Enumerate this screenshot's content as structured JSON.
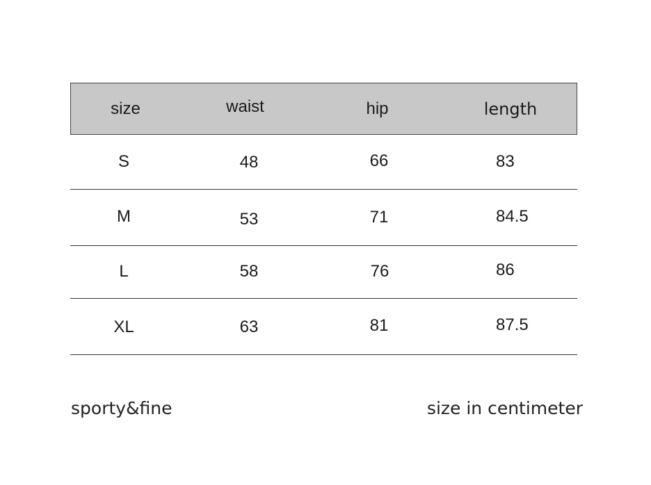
{
  "table": {
    "headers": [
      "size",
      "waist",
      "hip",
      "length"
    ],
    "header_color": "#c8c8c8",
    "rows": [
      [
        "S",
        "48",
        "66",
        "83"
      ],
      [
        "M",
        "53",
        "71",
        "84.5"
      ],
      [
        "L",
        "58",
        "76",
        "86"
      ],
      [
        "XL",
        "63",
        "81",
        "87.5"
      ]
    ]
  },
  "footer": {
    "brand": "sporty&fine",
    "unit_note": "size in centimeter"
  }
}
